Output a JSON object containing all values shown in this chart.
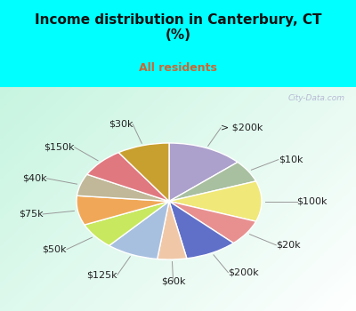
{
  "title": "Income distribution in Canterbury, CT\n(%)",
  "subtitle": "All residents",
  "title_color": "#111111",
  "subtitle_color": "#cc6633",
  "bg_cyan": "#00ffff",
  "labels": [
    "> $200k",
    "$10k",
    "$100k",
    "$20k",
    "$200k",
    "$60k",
    "$125k",
    "$50k",
    "$75k",
    "$40k",
    "$150k",
    "$30k"
  ],
  "values": [
    13,
    6,
    11,
    7,
    9,
    5,
    9,
    7,
    8,
    6,
    8,
    9
  ],
  "colors": [
    "#aca0cc",
    "#a8bfa0",
    "#f0e878",
    "#e89090",
    "#6070c8",
    "#f0c8a8",
    "#a8c0e0",
    "#c8e860",
    "#f0a858",
    "#c0b898",
    "#e07880",
    "#c8a030"
  ],
  "wedge_edge_color": "white",
  "wedge_linewidth": 1.0,
  "label_fontsize": 8,
  "label_color": "#222222"
}
